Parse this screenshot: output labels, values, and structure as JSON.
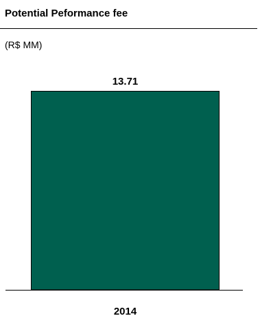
{
  "header": {
    "title": "Potential Peformance fee",
    "unit": "(R$ MM)"
  },
  "colors": {
    "bar": "#00604F",
    "bar_outline": "#000000",
    "rule": "#000000"
  },
  "chart_data": {
    "type": "bar",
    "title": "Potential Peformance fee",
    "subtitle": "(R$ MM)",
    "categories": [
      "2014"
    ],
    "values": [
      13.71
    ],
    "value_labels": [
      "13.71"
    ],
    "ylim": [
      0,
      13.71
    ],
    "grid": false,
    "legend": "none"
  }
}
